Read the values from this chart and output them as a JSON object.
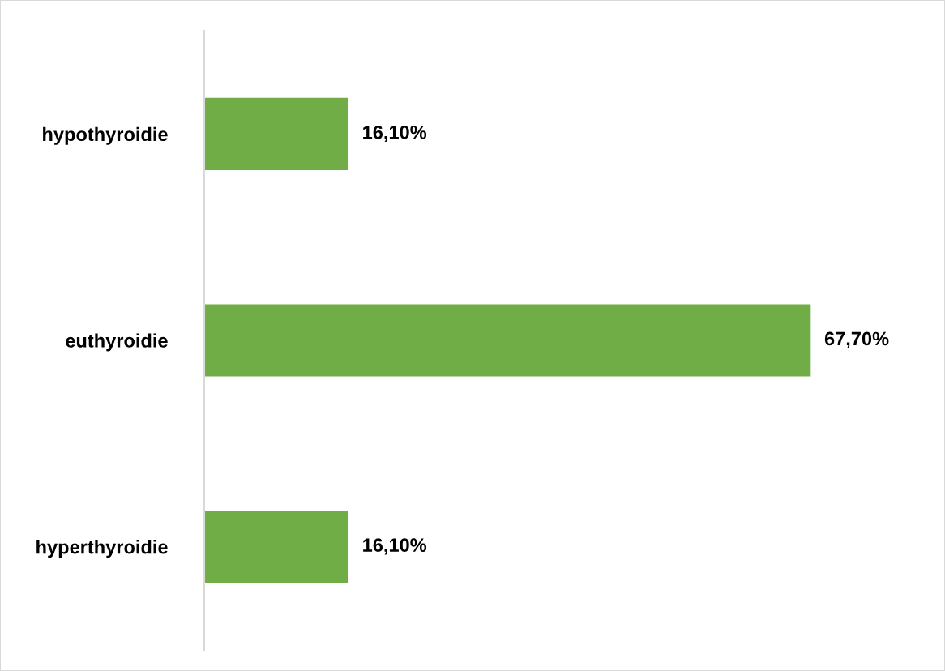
{
  "chart_data": {
    "type": "bar",
    "orientation": "horizontal",
    "categories": [
      "hypothyroidie",
      "euthyroidie",
      "hyperthyroidie"
    ],
    "values": [
      16.1,
      67.7,
      16.1
    ],
    "value_labels": [
      "16,10%",
      "67,70%",
      "16,10%"
    ],
    "color": "#70ad47",
    "grid": false,
    "legend": false,
    "tick_labels": "y"
  }
}
